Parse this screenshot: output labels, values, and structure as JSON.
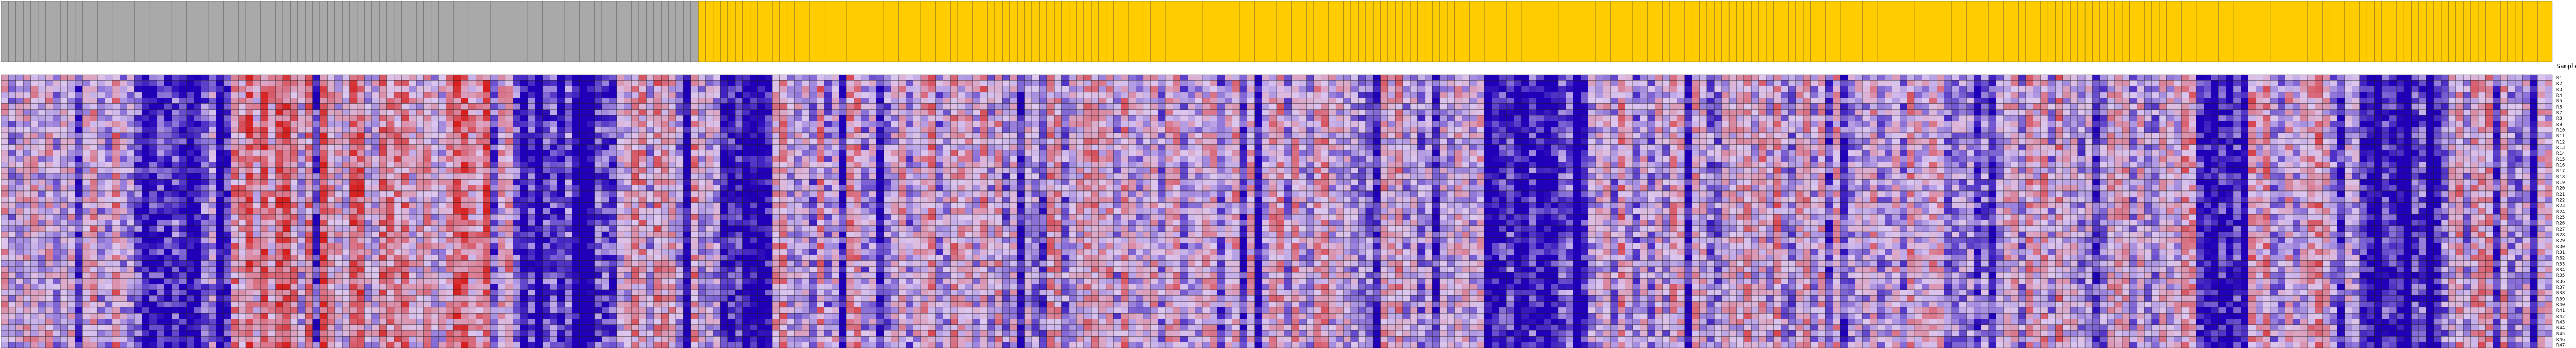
{
  "chart_data": {
    "type": "heatmap",
    "row_header": "SampleNam",
    "n_columns": 344,
    "n_rows": 47,
    "column_groups": [
      {
        "count": 94,
        "color": "#a9a9a9"
      },
      {
        "count": 250,
        "color": "#ffcc00"
      }
    ],
    "color_scale": {
      "low": "#1f00b8",
      "mid": "#ddc8f0",
      "high": "#d62020",
      "cell_border": "#1a1a1a"
    },
    "row_labels": [
      "R1",
      "R2",
      "R3",
      "R4",
      "R5",
      "R6",
      "R7",
      "R8",
      "R9",
      "R10",
      "R11",
      "R12",
      "R13",
      "R14",
      "R15",
      "R16",
      "R17",
      "R18",
      "R19",
      "R20",
      "R21",
      "R22",
      "R23",
      "R24",
      "R25",
      "R26",
      "R27",
      "R28",
      "R29",
      "R30",
      "R31",
      "R32",
      "R33",
      "R34",
      "R35",
      "R36",
      "R37",
      "R38",
      "R39",
      "R40",
      "R41",
      "R42",
      "R43",
      "R44",
      "R45",
      "R46",
      "R47"
    ]
  }
}
